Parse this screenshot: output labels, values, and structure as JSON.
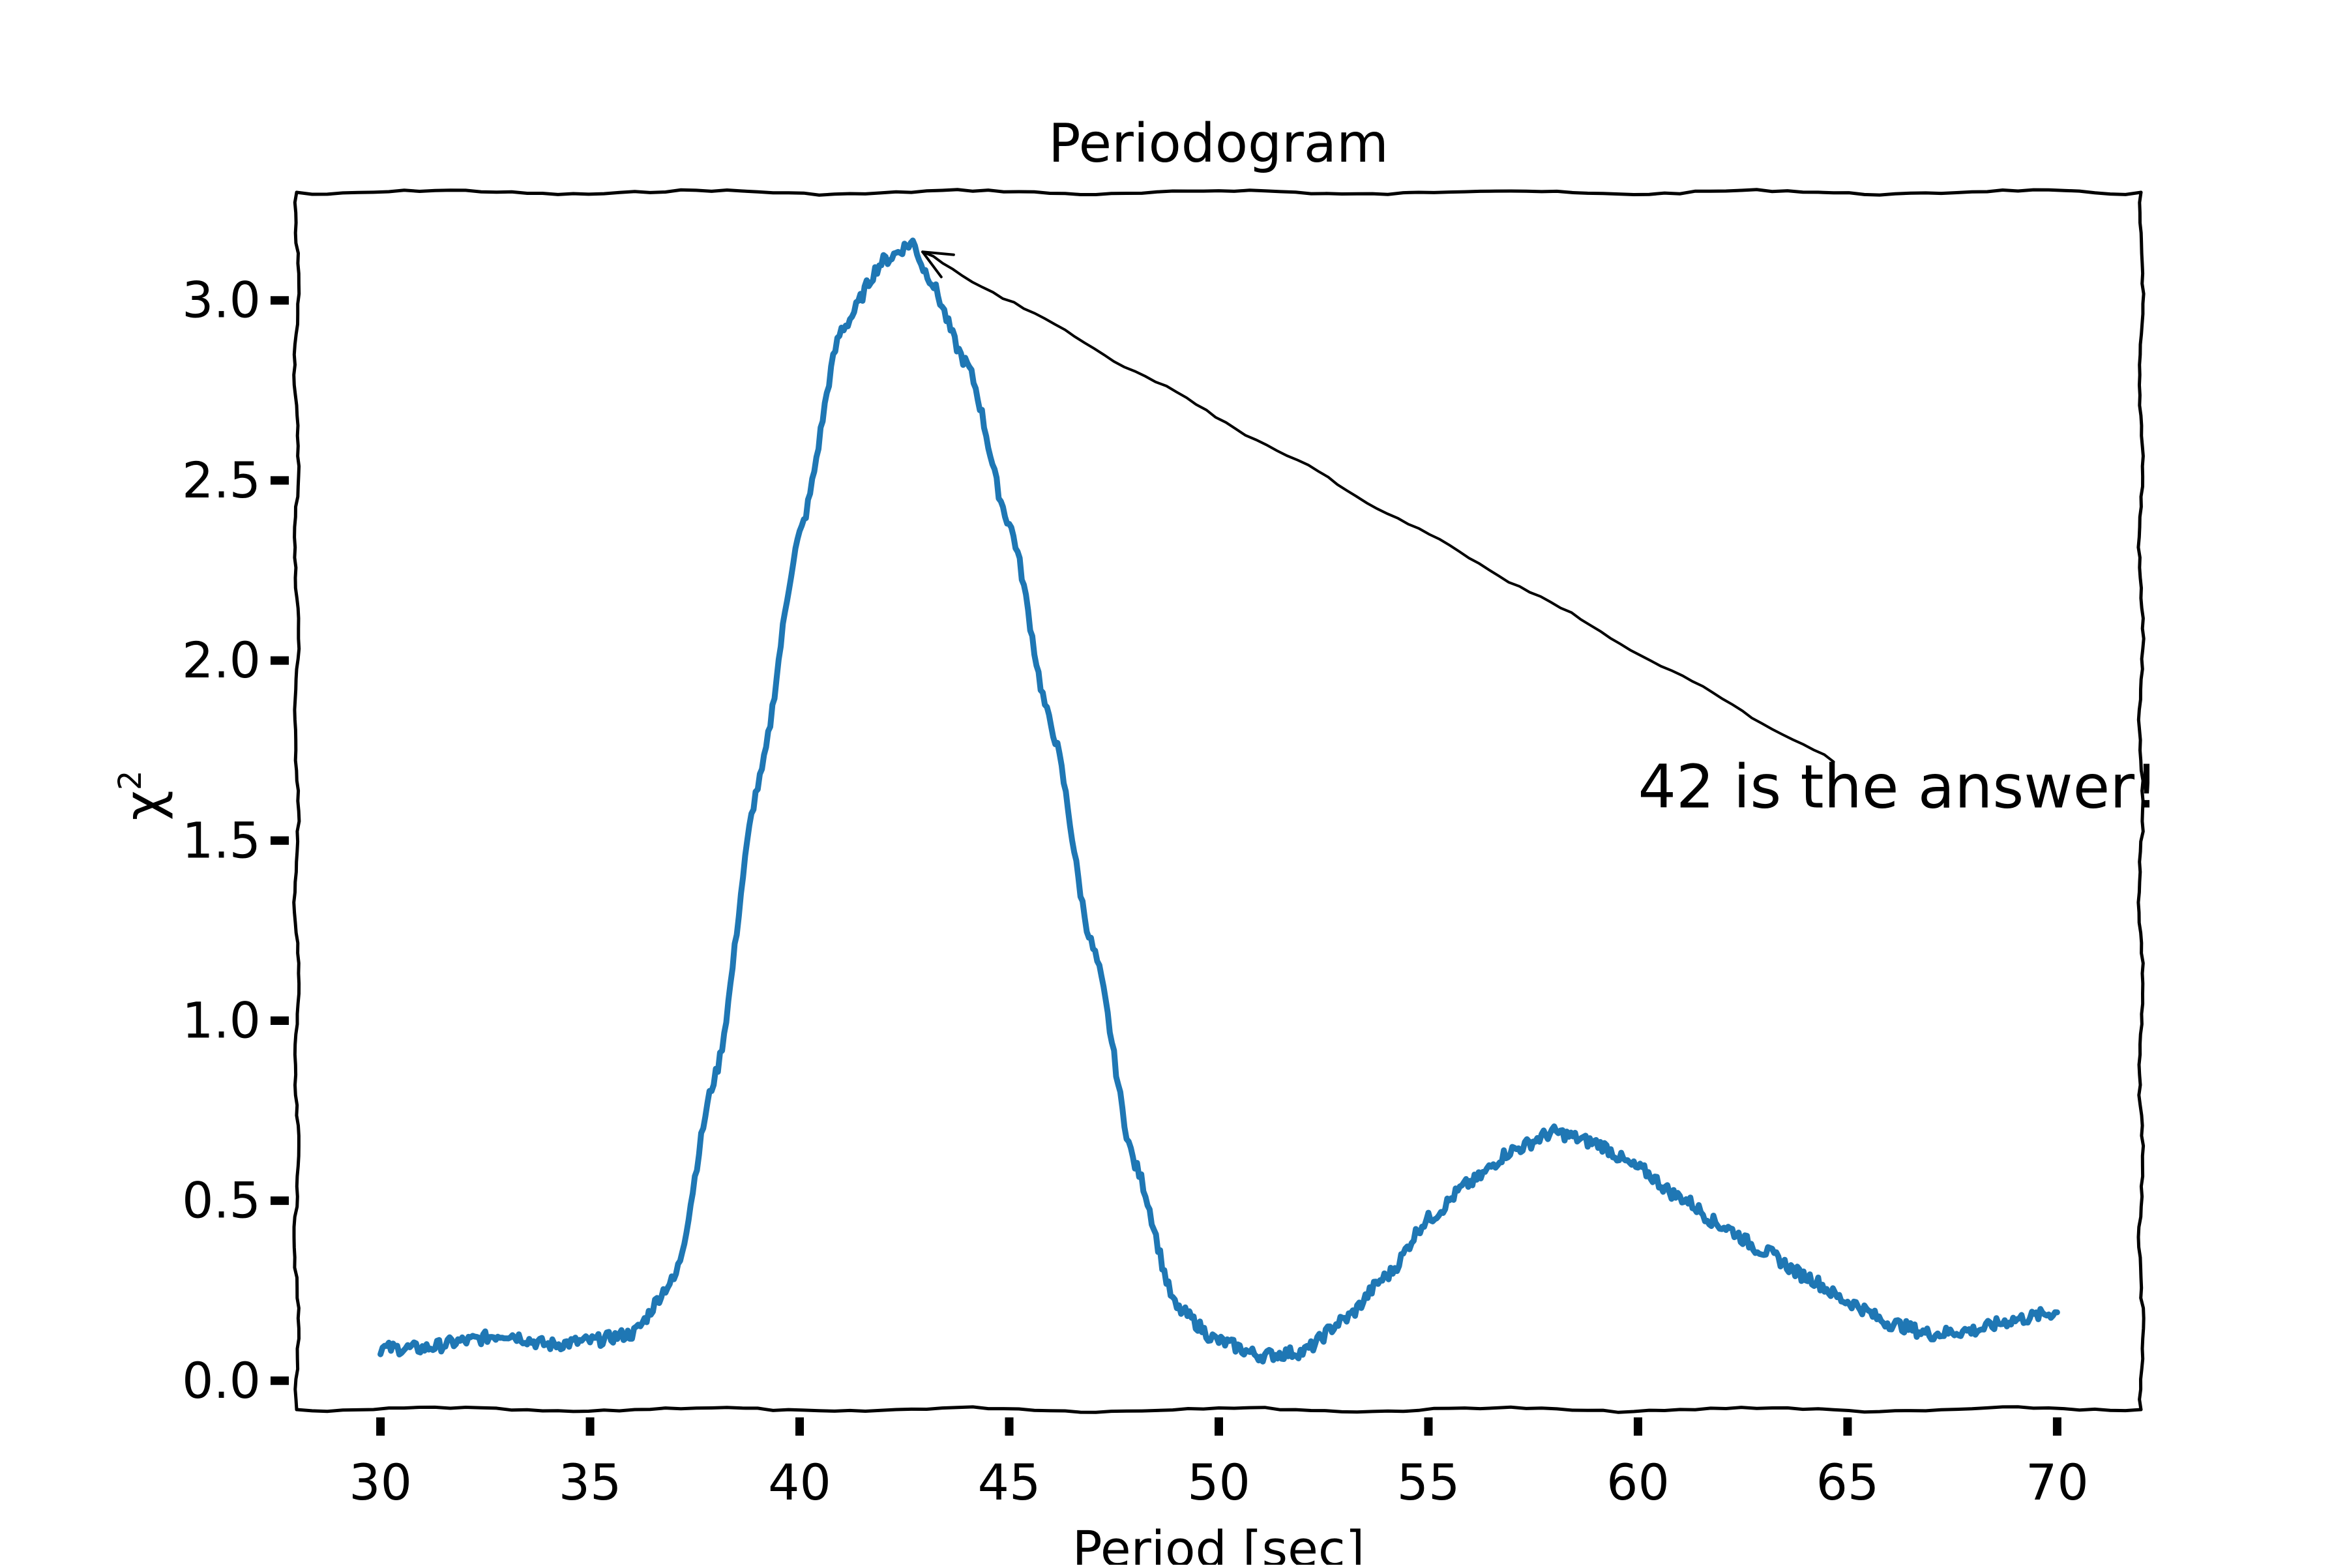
{
  "chart_data": {
    "type": "line",
    "title": "Periodogram",
    "xlabel": "Period [sec]",
    "ylabel": "χ",
    "ylabel_superscript": "2",
    "xlim": [
      28,
      72
    ],
    "ylim": [
      -0.08,
      3.3
    ],
    "x_ticks": [
      30,
      35,
      40,
      45,
      50,
      55,
      60,
      65,
      70
    ],
    "x_tick_labels": [
      "30",
      "35",
      "40",
      "45",
      "50",
      "55",
      "60",
      "65",
      "70"
    ],
    "y_ticks": [
      0.0,
      0.5,
      1.0,
      1.5,
      2.0,
      2.5,
      3.0
    ],
    "y_tick_labels": [
      "0.0",
      "0.5",
      "1.0",
      "1.5",
      "2.0",
      "2.5",
      "3.0"
    ],
    "grid": false,
    "series": [
      {
        "color": "#1f77b4",
        "x": [
          30,
          31,
          32,
          33,
          34,
          35,
          36,
          37,
          38,
          39,
          40,
          41,
          42,
          42.7,
          43,
          44,
          45,
          46,
          47,
          48,
          49,
          50,
          51,
          52,
          53,
          54,
          55,
          56,
          57,
          58,
          59,
          60,
          61,
          62,
          63,
          64,
          65,
          66,
          67,
          68,
          69,
          70
        ],
        "y": [
          0.09,
          0.09,
          0.11,
          0.13,
          0.1,
          0.11,
          0.13,
          0.28,
          0.85,
          1.65,
          2.35,
          2.92,
          3.11,
          3.16,
          3.08,
          2.82,
          2.38,
          1.82,
          1.2,
          0.6,
          0.2,
          0.11,
          0.07,
          0.08,
          0.17,
          0.29,
          0.45,
          0.55,
          0.64,
          0.69,
          0.66,
          0.59,
          0.51,
          0.43,
          0.36,
          0.29,
          0.22,
          0.16,
          0.13,
          0.14,
          0.17,
          0.19
        ]
      }
    ],
    "annotations": [
      {
        "text": "42 is the answer!",
        "xy": [
          42.7,
          3.16
        ],
        "xytext": [
          60,
          1.65
        ]
      }
    ]
  }
}
